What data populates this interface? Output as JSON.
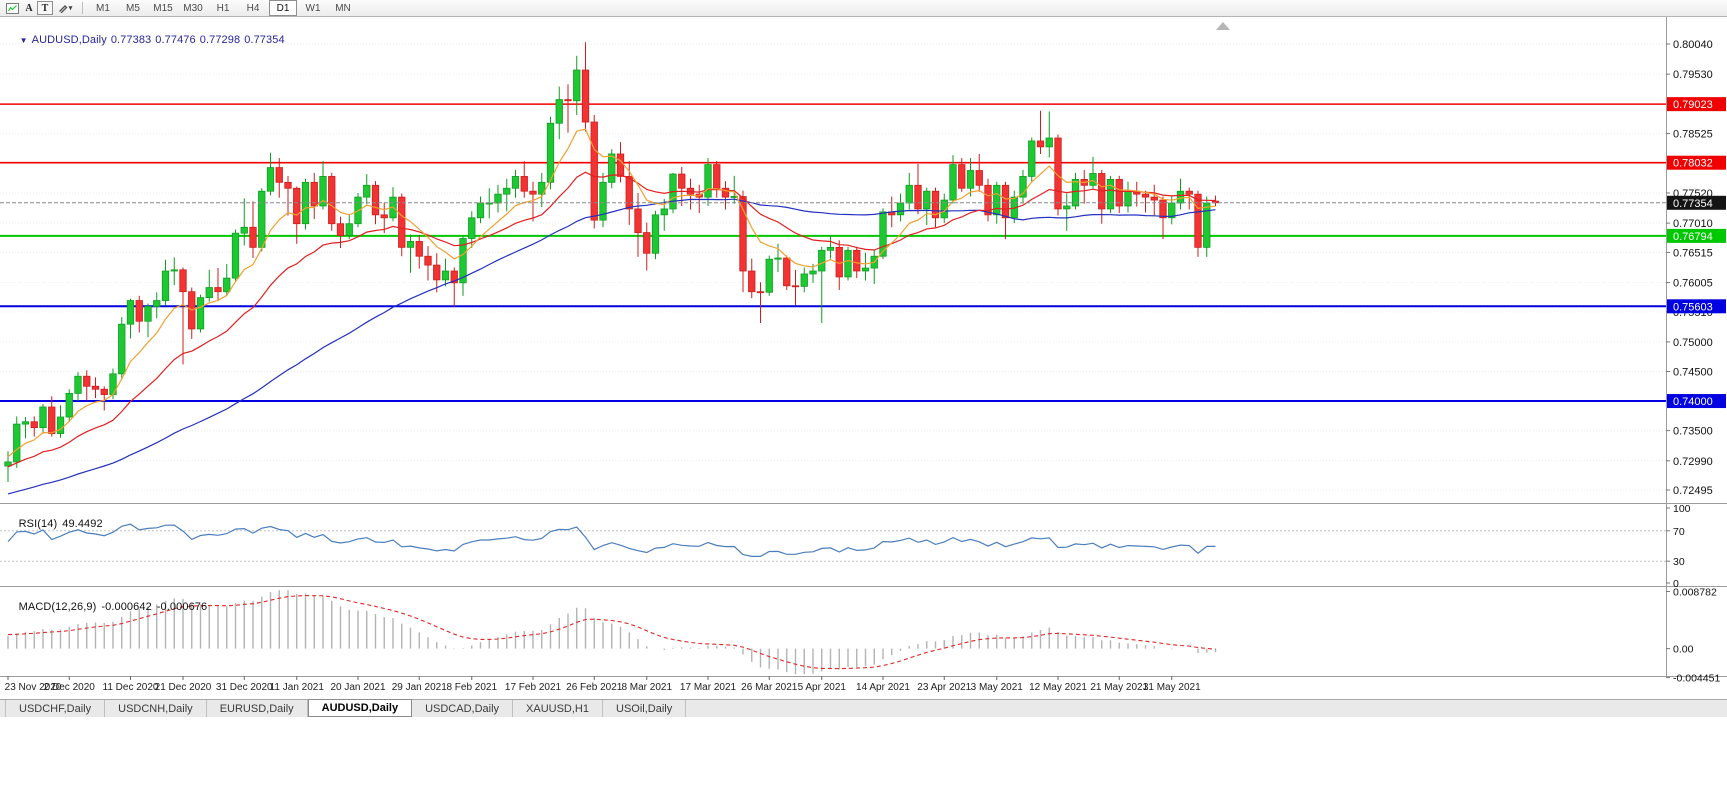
{
  "toolbar": {
    "arrow_label": "A",
    "text_label": "T",
    "timeframes": [
      {
        "label": "M1",
        "active": false
      },
      {
        "label": "M5",
        "active": false
      },
      {
        "label": "M15",
        "active": false
      },
      {
        "label": "M30",
        "active": false
      },
      {
        "label": "H1",
        "active": false
      },
      {
        "label": "H4",
        "active": false
      },
      {
        "label": "D1",
        "active": true
      },
      {
        "label": "W1",
        "active": false
      },
      {
        "label": "MN",
        "active": false
      }
    ]
  },
  "chart_header": {
    "symbol": "AUDUSD,Daily",
    "open": "0.77383",
    "high": "0.77476",
    "low": "0.77298",
    "close": "0.77354"
  },
  "indicators": {
    "rsi": {
      "label": "RSI(14)",
      "value": "49.4492",
      "period": 14,
      "line_color": "#4a7ebd",
      "levels": [
        70,
        30
      ],
      "scale": [
        {
          "v": 100,
          "t": "100"
        },
        {
          "v": 70,
          "t": "70"
        },
        {
          "v": 30,
          "t": "30"
        },
        {
          "v": 0,
          "t": "0"
        }
      ]
    },
    "macd": {
      "label": "MACD(12,26,9)",
      "value": "-0.000642",
      "signal": "-0.000676",
      "fast": 12,
      "slow": 26,
      "smoothing": 9,
      "histogram_color": "#b3b3b3",
      "signal_color": "#e02626",
      "scale": [
        {
          "v": 0.008782,
          "t": "0.008782"
        },
        {
          "v": 0,
          "t": "0.00"
        },
        {
          "v": -0.004451,
          "t": "-0.004451"
        }
      ]
    }
  },
  "chart_data": {
    "type": "candlestick",
    "symbol": "AUDUSD",
    "timeframe": "Daily",
    "up_color": "#1ec832",
    "down_color": "#f23333",
    "price_scale_ticks": [
      "0.80040",
      "0.79530",
      "0.78525",
      "0.77520",
      "0.77010",
      "0.76515",
      "0.76005",
      "0.75510",
      "0.75000",
      "0.74500",
      "0.73500",
      "0.72990",
      "0.72495"
    ],
    "levels": [
      {
        "text": "0.79023",
        "price": 0.79023,
        "color": "#f00000",
        "width": 1.6
      },
      {
        "text": "0.78032",
        "price": 0.78032,
        "color": "#f00000",
        "width": 1.6
      },
      {
        "text": "0.76794",
        "price": 0.76794,
        "color": "#00c800",
        "width": 2
      },
      {
        "text": "0.75603",
        "price": 0.75603,
        "color": "#0000e0",
        "width": 2
      },
      {
        "text": "0.74000",
        "price": 0.74,
        "color": "#0000e0",
        "width": 2
      }
    ],
    "bid_line": {
      "text": "0.77354",
      "price": 0.77354,
      "line_color": "#8a8a8a",
      "badge_color": "#141414"
    },
    "moving_averages": [
      {
        "type": "ema",
        "period": 8,
        "color": "#f0a030"
      },
      {
        "type": "ema",
        "period": 21,
        "color": "#e02020"
      },
      {
        "type": "sma",
        "period": 50,
        "color": "#2330c0"
      }
    ],
    "x_ticks": [
      {
        "i": 0,
        "label": "23 Nov 2020"
      },
      {
        "i": 7,
        "label": "2 Dec 2020"
      },
      {
        "i": 14,
        "label": "11 Dec 2020"
      },
      {
        "i": 20,
        "label": "21 Dec 2020"
      },
      {
        "i": 27,
        "label": "31 Dec 2020"
      },
      {
        "i": 33,
        "label": "11 Jan 2021"
      },
      {
        "i": 40,
        "label": "20 Jan 2021"
      },
      {
        "i": 47,
        "label": "29 Jan 2021"
      },
      {
        "i": 53,
        "label": "8 Feb 2021"
      },
      {
        "i": 60,
        "label": "17 Feb 2021"
      },
      {
        "i": 67,
        "label": "26 Feb 2021"
      },
      {
        "i": 73,
        "label": "8 Mar 2021"
      },
      {
        "i": 80,
        "label": "17 Mar 2021"
      },
      {
        "i": 87,
        "label": "26 Mar 2021"
      },
      {
        "i": 93,
        "label": "5 Apr 2021"
      },
      {
        "i": 100,
        "label": "14 Apr 2021"
      },
      {
        "i": 107,
        "label": "23 Apr 2021"
      },
      {
        "i": 113,
        "label": "3 May 2021"
      },
      {
        "i": 120,
        "label": "12 May 2021"
      },
      {
        "i": 127,
        "label": "21 May 2021"
      },
      {
        "i": 133,
        "label": "31 May 2021"
      }
    ],
    "warmup_closes": [
      0.713,
      0.7144,
      0.7138,
      0.715,
      0.7158,
      0.7146,
      0.7162,
      0.717,
      0.7156,
      0.7165,
      0.7176,
      0.717,
      0.7184,
      0.7178,
      0.7192,
      0.7198,
      0.7186,
      0.7202,
      0.7208,
      0.7196,
      0.7212,
      0.7205,
      0.722,
      0.7226,
      0.7214,
      0.723,
      0.7222,
      0.7238,
      0.7244,
      0.7232,
      0.7248,
      0.724,
      0.7255,
      0.7262,
      0.725,
      0.7266,
      0.7258,
      0.7272,
      0.7278,
      0.7266,
      0.7282,
      0.7274,
      0.7288,
      0.728,
      0.7294,
      0.7286,
      0.73,
      0.7292,
      0.7306,
      0.7298,
      0.7312,
      0.7304,
      0.7318,
      0.731,
      0.7322
    ],
    "candles": [
      [
        0.729,
        0.7315,
        0.7263,
        0.7297
      ],
      [
        0.7297,
        0.7374,
        0.7287,
        0.7361
      ],
      [
        0.7361,
        0.7373,
        0.7337,
        0.7365
      ],
      [
        0.7365,
        0.7374,
        0.734,
        0.7355
      ],
      [
        0.7355,
        0.7395,
        0.7345,
        0.739
      ],
      [
        0.739,
        0.7408,
        0.734,
        0.7345
      ],
      [
        0.7345,
        0.7393,
        0.7338,
        0.7373
      ],
      [
        0.7373,
        0.742,
        0.7365,
        0.7413
      ],
      [
        0.7413,
        0.7449,
        0.74,
        0.7442
      ],
      [
        0.7442,
        0.7452,
        0.7401,
        0.7425
      ],
      [
        0.7425,
        0.744,
        0.7405,
        0.742
      ],
      [
        0.742,
        0.7425,
        0.7384,
        0.7411
      ],
      [
        0.7411,
        0.7455,
        0.7403,
        0.7446
      ],
      [
        0.7446,
        0.7542,
        0.7436,
        0.753
      ],
      [
        0.753,
        0.7573,
        0.7506,
        0.757
      ],
      [
        0.757,
        0.7578,
        0.7516,
        0.7535
      ],
      [
        0.7535,
        0.7565,
        0.7508,
        0.756
      ],
      [
        0.756,
        0.7584,
        0.754,
        0.757
      ],
      [
        0.757,
        0.7639,
        0.7562,
        0.762
      ],
      [
        0.762,
        0.7643,
        0.7596,
        0.7622
      ],
      [
        0.7622,
        0.7626,
        0.7462,
        0.7585
      ],
      [
        0.7585,
        0.7592,
        0.7505,
        0.7522
      ],
      [
        0.7522,
        0.758,
        0.7516,
        0.7575
      ],
      [
        0.7575,
        0.7622,
        0.7568,
        0.7592
      ],
      [
        0.7592,
        0.7625,
        0.757,
        0.7585
      ],
      [
        0.7585,
        0.7632,
        0.7578,
        0.7608
      ],
      [
        0.7608,
        0.769,
        0.7602,
        0.7684
      ],
      [
        0.7684,
        0.7743,
        0.7663,
        0.7694
      ],
      [
        0.7694,
        0.7738,
        0.7642,
        0.766
      ],
      [
        0.766,
        0.776,
        0.7653,
        0.7755
      ],
      [
        0.7755,
        0.782,
        0.7748,
        0.7795
      ],
      [
        0.7795,
        0.7811,
        0.7744,
        0.777
      ],
      [
        0.777,
        0.7781,
        0.7714,
        0.776
      ],
      [
        0.776,
        0.7763,
        0.7666,
        0.77
      ],
      [
        0.77,
        0.7776,
        0.769,
        0.777
      ],
      [
        0.777,
        0.7786,
        0.7708,
        0.773
      ],
      [
        0.773,
        0.7806,
        0.7724,
        0.778
      ],
      [
        0.778,
        0.7786,
        0.7688,
        0.77
      ],
      [
        0.77,
        0.7712,
        0.7659,
        0.768
      ],
      [
        0.768,
        0.7716,
        0.7674,
        0.77
      ],
      [
        0.77,
        0.7752,
        0.7694,
        0.7745
      ],
      [
        0.7745,
        0.7784,
        0.7733,
        0.7765
      ],
      [
        0.7765,
        0.7772,
        0.7699,
        0.7715
      ],
      [
        0.7715,
        0.7736,
        0.7684,
        0.771
      ],
      [
        0.771,
        0.7762,
        0.7704,
        0.7745
      ],
      [
        0.7745,
        0.7751,
        0.7645,
        0.766
      ],
      [
        0.766,
        0.7682,
        0.7617,
        0.767
      ],
      [
        0.767,
        0.7681,
        0.7624,
        0.7645
      ],
      [
        0.7645,
        0.7662,
        0.7604,
        0.763
      ],
      [
        0.763,
        0.765,
        0.7584,
        0.7605
      ],
      [
        0.7605,
        0.7641,
        0.7594,
        0.762
      ],
      [
        0.762,
        0.7626,
        0.756,
        0.76
      ],
      [
        0.76,
        0.768,
        0.7578,
        0.7675
      ],
      [
        0.7675,
        0.7721,
        0.7659,
        0.771
      ],
      [
        0.771,
        0.7746,
        0.7701,
        0.7735
      ],
      [
        0.7735,
        0.776,
        0.7709,
        0.7735
      ],
      [
        0.7735,
        0.7766,
        0.7719,
        0.775
      ],
      [
        0.775,
        0.7776,
        0.7721,
        0.776
      ],
      [
        0.776,
        0.7791,
        0.7744,
        0.778
      ],
      [
        0.778,
        0.7806,
        0.7744,
        0.7755
      ],
      [
        0.7755,
        0.7771,
        0.7704,
        0.775
      ],
      [
        0.775,
        0.7786,
        0.7728,
        0.777
      ],
      [
        0.777,
        0.7881,
        0.7758,
        0.787
      ],
      [
        0.787,
        0.7932,
        0.7843,
        0.791
      ],
      [
        0.791,
        0.7936,
        0.7854,
        0.7908
      ],
      [
        0.7908,
        0.7984,
        0.7884,
        0.796
      ],
      [
        0.796,
        0.8007,
        0.7856,
        0.7872
      ],
      [
        0.7872,
        0.7884,
        0.7692,
        0.7706
      ],
      [
        0.7706,
        0.7786,
        0.7694,
        0.777
      ],
      [
        0.777,
        0.7826,
        0.776,
        0.7818
      ],
      [
        0.7818,
        0.7838,
        0.777,
        0.778
      ],
      [
        0.778,
        0.7806,
        0.7698,
        0.7725
      ],
      [
        0.7725,
        0.7752,
        0.7644,
        0.7685
      ],
      [
        0.7685,
        0.7702,
        0.7621,
        0.765
      ],
      [
        0.765,
        0.7722,
        0.764,
        0.7715
      ],
      [
        0.7715,
        0.7742,
        0.7688,
        0.7725
      ],
      [
        0.7725,
        0.7786,
        0.7718,
        0.7784
      ],
      [
        0.7784,
        0.7796,
        0.773,
        0.776
      ],
      [
        0.776,
        0.7776,
        0.7724,
        0.775
      ],
      [
        0.775,
        0.7766,
        0.7718,
        0.7745
      ],
      [
        0.7745,
        0.7811,
        0.773,
        0.78
      ],
      [
        0.78,
        0.7806,
        0.7744,
        0.776
      ],
      [
        0.776,
        0.7772,
        0.7724,
        0.7745
      ],
      [
        0.7745,
        0.7781,
        0.7734,
        0.7746
      ],
      [
        0.7746,
        0.7756,
        0.7584,
        0.762
      ],
      [
        0.762,
        0.7641,
        0.7574,
        0.7585
      ],
      [
        0.7585,
        0.7601,
        0.7532,
        0.7584
      ],
      [
        0.7584,
        0.7646,
        0.7578,
        0.764
      ],
      [
        0.764,
        0.7666,
        0.7618,
        0.7642
      ],
      [
        0.7642,
        0.7646,
        0.7588,
        0.7595
      ],
      [
        0.7595,
        0.7622,
        0.7562,
        0.7594
      ],
      [
        0.7594,
        0.7626,
        0.7584,
        0.7615
      ],
      [
        0.7615,
        0.7632,
        0.76,
        0.762
      ],
      [
        0.762,
        0.7661,
        0.7532,
        0.7655
      ],
      [
        0.7655,
        0.7681,
        0.7641,
        0.766
      ],
      [
        0.766,
        0.7672,
        0.7588,
        0.761
      ],
      [
        0.761,
        0.7661,
        0.7604,
        0.7655
      ],
      [
        0.7655,
        0.7661,
        0.7608,
        0.762
      ],
      [
        0.762,
        0.7651,
        0.7604,
        0.7625
      ],
      [
        0.7625,
        0.7656,
        0.7598,
        0.7645
      ],
      [
        0.7645,
        0.7726,
        0.764,
        0.772
      ],
      [
        0.772,
        0.7746,
        0.7694,
        0.7715
      ],
      [
        0.7715,
        0.7751,
        0.7704,
        0.7735
      ],
      [
        0.7735,
        0.7786,
        0.7724,
        0.7765
      ],
      [
        0.7765,
        0.7801,
        0.7716,
        0.7725
      ],
      [
        0.7725,
        0.7761,
        0.7698,
        0.7755
      ],
      [
        0.7755,
        0.7761,
        0.7694,
        0.771
      ],
      [
        0.771,
        0.7751,
        0.7701,
        0.774
      ],
      [
        0.774,
        0.7816,
        0.7734,
        0.78
      ],
      [
        0.78,
        0.7811,
        0.7754,
        0.776
      ],
      [
        0.776,
        0.7811,
        0.7746,
        0.779
      ],
      [
        0.779,
        0.7818,
        0.7754,
        0.7765
      ],
      [
        0.7765,
        0.7776,
        0.7704,
        0.7715
      ],
      [
        0.7715,
        0.7771,
        0.77,
        0.7765
      ],
      [
        0.7765,
        0.7771,
        0.7674,
        0.771
      ],
      [
        0.771,
        0.7756,
        0.7701,
        0.7745
      ],
      [
        0.7745,
        0.7791,
        0.7734,
        0.778
      ],
      [
        0.778,
        0.7846,
        0.7771,
        0.784
      ],
      [
        0.784,
        0.7891,
        0.7818,
        0.783
      ],
      [
        0.783,
        0.789,
        0.7812,
        0.7845
      ],
      [
        0.7845,
        0.7851,
        0.7714,
        0.7725
      ],
      [
        0.7725,
        0.7751,
        0.7688,
        0.773
      ],
      [
        0.773,
        0.7786,
        0.7724,
        0.7775
      ],
      [
        0.7775,
        0.7791,
        0.7734,
        0.7765
      ],
      [
        0.7765,
        0.7813,
        0.7758,
        0.7785
      ],
      [
        0.7785,
        0.7791,
        0.77,
        0.7725
      ],
      [
        0.7725,
        0.7781,
        0.7718,
        0.7775
      ],
      [
        0.7775,
        0.7781,
        0.7718,
        0.773
      ],
      [
        0.773,
        0.7771,
        0.7719,
        0.7755
      ],
      [
        0.7755,
        0.7771,
        0.7729,
        0.775
      ],
      [
        0.775,
        0.7756,
        0.7719,
        0.7745
      ],
      [
        0.7745,
        0.7766,
        0.7714,
        0.774
      ],
      [
        0.774,
        0.7746,
        0.7674,
        0.771
      ],
      [
        0.771,
        0.7746,
        0.7699,
        0.7735
      ],
      [
        0.7735,
        0.7776,
        0.7724,
        0.7755
      ],
      [
        0.7755,
        0.7761,
        0.7724,
        0.775
      ],
      [
        0.775,
        0.7756,
        0.7644,
        0.766
      ],
      [
        0.766,
        0.7746,
        0.7644,
        0.7735
      ],
      [
        0.77383,
        0.77476,
        0.77298,
        0.77354
      ]
    ]
  },
  "tabs": {
    "items": [
      {
        "label": "USDCHF,Daily",
        "active": false
      },
      {
        "label": "USDCNH,Daily",
        "active": false
      },
      {
        "label": "EURUSD,Daily",
        "active": false
      },
      {
        "label": "AUDUSD,Daily",
        "active": true
      },
      {
        "label": "USDCAD,Daily",
        "active": false
      },
      {
        "label": "XAUUSD,H1",
        "active": false
      },
      {
        "label": "USOil,Daily",
        "active": false
      }
    ]
  }
}
